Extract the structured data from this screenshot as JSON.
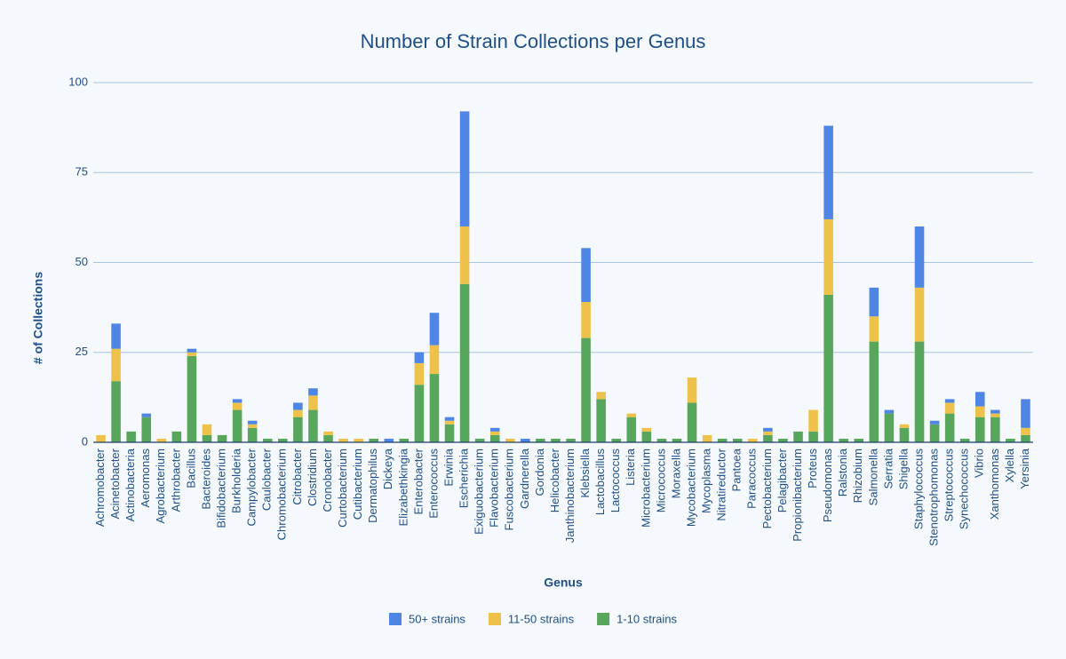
{
  "chart_data": {
    "type": "stacked_bar",
    "title": "Number of Strain Collections per Genus",
    "x_label": "Genus",
    "y_label": "# of Collections",
    "categories": [
      "Achromobacter",
      "Acinetobacter",
      "Actinobacteria",
      "Aeromonas",
      "Agrobacterium",
      "Arthrobacter",
      "Bacillus",
      "Bacteroides",
      "Bifidobacterium",
      "Burkholderia",
      "Campylobacter",
      "Caulobacter",
      "Chromobacterium",
      "Citrobacter",
      "Clostridium",
      "Cronobacter",
      "Curtobacterium",
      "Cutibacterium",
      "Dermatophilus",
      "Dickeya",
      "Elizabethkingia",
      "Enterobacter",
      "Enterococcus",
      "Erwinia",
      "Escherichia",
      "Exiguobacterium",
      "Flavobacterium",
      "Fuscobacterium",
      "Gardnerella",
      "Gordonia",
      "Helicobacter",
      "Janthinobacterium",
      "Klebsiella",
      "Lactobacillus",
      "Lactococcus",
      "Listeria",
      "Microbacterium",
      "Micrococcus",
      "Moraxella",
      "Mycobacterium",
      "Mycoplasma",
      "Nitratireductor",
      "Pantoea",
      "Paracoccus",
      "Pectobacterium",
      "Pelagibacter",
      "Propionibacterium",
      "Proteus",
      "Pseudomonas",
      "Ralstonia",
      "Rhizobium",
      "Salmonella",
      "Serratia",
      "Shigella",
      "Staphylococcus",
      "Stenotrophomonas",
      "Streptococcus",
      "Synechococcus",
      "Vibrio",
      "Xanthomonas",
      "Xylella",
      "Yersinia"
    ],
    "series": [
      {
        "name": "50+ strains",
        "color": "#4f86e6",
        "values": [
          0,
          7,
          0,
          1,
          0,
          0,
          1,
          0,
          0,
          1,
          1,
          0,
          0,
          2,
          2,
          0,
          0,
          0,
          0,
          1,
          0,
          3,
          9,
          1,
          32,
          0,
          1,
          0,
          1,
          0,
          0,
          0,
          15,
          0,
          0,
          0,
          0,
          0,
          0,
          0,
          0,
          0,
          0,
          0,
          1,
          0,
          0,
          0,
          26,
          0,
          0,
          8,
          1,
          0,
          17,
          1,
          1,
          0,
          4,
          1,
          0,
          8
        ]
      },
      {
        "name": "11-50 strains",
        "color": "#eec24a",
        "values": [
          2,
          9,
          0,
          0,
          1,
          0,
          1,
          3,
          0,
          2,
          1,
          0,
          0,
          2,
          4,
          1,
          1,
          1,
          0,
          0,
          0,
          6,
          8,
          1,
          16,
          0,
          1,
          1,
          0,
          0,
          0,
          0,
          10,
          2,
          0,
          1,
          1,
          0,
          0,
          7,
          2,
          0,
          0,
          1,
          1,
          0,
          0,
          6,
          21,
          0,
          0,
          7,
          0,
          1,
          15,
          0,
          3,
          0,
          3,
          1,
          0,
          2
        ]
      },
      {
        "name": "1-10 strains",
        "color": "#58a65b",
        "values": [
          0,
          17,
          3,
          7,
          0,
          3,
          24,
          2,
          2,
          9,
          4,
          1,
          1,
          7,
          9,
          2,
          0,
          0,
          1,
          0,
          1,
          16,
          19,
          5,
          44,
          1,
          2,
          0,
          0,
          1,
          1,
          1,
          29,
          12,
          1,
          7,
          3,
          1,
          1,
          11,
          0,
          1,
          1,
          0,
          2,
          1,
          3,
          3,
          41,
          1,
          1,
          28,
          8,
          4,
          28,
          5,
          8,
          1,
          7,
          7,
          1,
          2
        ]
      }
    ],
    "ylim": [
      0,
      100
    ],
    "yticks": [
      0,
      25,
      50,
      75,
      100
    ],
    "grid": true,
    "legend": "bottom"
  }
}
